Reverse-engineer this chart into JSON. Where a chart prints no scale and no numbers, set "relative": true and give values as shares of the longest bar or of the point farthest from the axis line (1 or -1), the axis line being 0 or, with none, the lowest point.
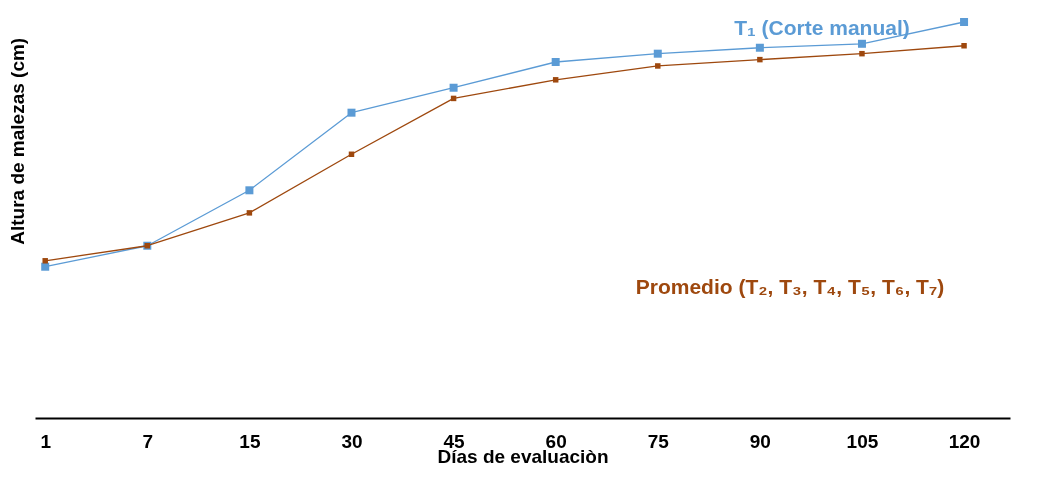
{
  "chart_data": {
    "type": "line",
    "relative": true,
    "xlabel": "Días de evaluaciòn",
    "ylabel": "Altura de malezas (cm)",
    "categories": [
      "1",
      "7",
      "15",
      "30",
      "45",
      "60",
      "75",
      "90",
      "105",
      "120"
    ],
    "series": [
      {
        "name": "T₁ (Corte manual)",
        "color": "#5b9bd5",
        "values": [
          0.382,
          0.435,
          0.575,
          0.771,
          0.834,
          0.899,
          0.92,
          0.935,
          0.945,
          1
        ]
      },
      {
        "name": "Promedio (T₂, T₃, T₄, T₅, T₆, T₇)",
        "color": "#9e480e",
        "values": [
          0.397,
          0.435,
          0.518,
          0.666,
          0.807,
          0.854,
          0.889,
          0.905,
          0.92,
          0.94
        ]
      }
    ],
    "marker": "square",
    "line_style": "solid",
    "legend": false,
    "grid": false
  }
}
